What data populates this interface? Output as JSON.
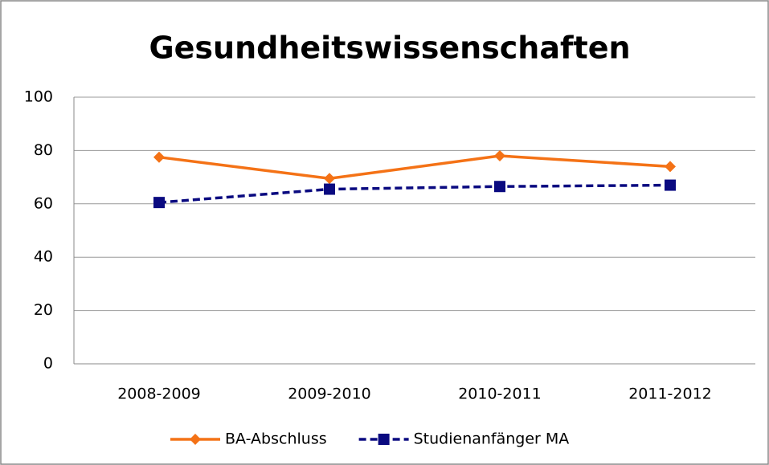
{
  "chart_data": {
    "type": "line",
    "title": "Gesundheitswissenschaften",
    "categories": [
      "2008-2009",
      "2009-2010",
      "2010-2011",
      "2011-2012"
    ],
    "series": [
      {
        "name": "BA-Abschluss",
        "color": "#f47216",
        "marker": "diamond",
        "dash": false,
        "values": [
          77.5,
          69.5,
          78,
          74
        ]
      },
      {
        "name": "Studienanfänger MA",
        "color": "#0a0a80",
        "marker": "square",
        "dash": true,
        "values": [
          60.5,
          65.5,
          66.5,
          67
        ]
      }
    ],
    "ylim": [
      0,
      100
    ],
    "yticks": [
      0,
      20,
      40,
      60,
      80,
      100
    ],
    "grid": true,
    "legend": "bottom"
  }
}
